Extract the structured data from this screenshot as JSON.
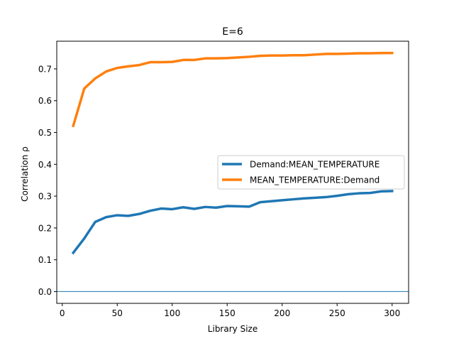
{
  "chart_data": {
    "type": "line",
    "title": "E=6",
    "xlabel": "Library Size",
    "ylabel": "Correlation ρ",
    "xlim": [
      -5,
      315
    ],
    "ylim": [
      -0.037,
      0.787
    ],
    "xticks": [
      0,
      50,
      100,
      150,
      200,
      250,
      300
    ],
    "xtick_labels": [
      "0",
      "50",
      "100",
      "150",
      "200",
      "250",
      "300"
    ],
    "yticks": [
      0.0,
      0.1,
      0.2,
      0.3,
      0.4,
      0.5,
      0.6,
      0.7
    ],
    "ytick_labels": [
      "0.0",
      "0.1",
      "0.2",
      "0.3",
      "0.4",
      "0.5",
      "0.6",
      "0.7"
    ],
    "grid": false,
    "legend_position": "center-right",
    "reference_line": {
      "y": 0.0,
      "color": "#1f77b4"
    },
    "x": [
      10,
      20,
      30,
      40,
      50,
      60,
      70,
      80,
      90,
      100,
      110,
      120,
      130,
      140,
      150,
      160,
      170,
      180,
      190,
      200,
      210,
      220,
      230,
      240,
      250,
      260,
      270,
      280,
      290,
      300
    ],
    "series": [
      {
        "name": "Demand:MEAN_TEMPERATURE",
        "color": "#1f77b4",
        "values": [
          0.122,
          0.167,
          0.219,
          0.234,
          0.24,
          0.238,
          0.244,
          0.254,
          0.261,
          0.259,
          0.265,
          0.26,
          0.266,
          0.264,
          0.269,
          0.268,
          0.267,
          0.281,
          0.284,
          0.287,
          0.29,
          0.293,
          0.295,
          0.297,
          0.301,
          0.306,
          0.309,
          0.31,
          0.315,
          0.316
        ]
      },
      {
        "name": "MEAN_TEMPERATURE:Demand",
        "color": "#ff7f0e",
        "values": [
          0.521,
          0.638,
          0.67,
          0.692,
          0.703,
          0.708,
          0.712,
          0.721,
          0.721,
          0.722,
          0.728,
          0.728,
          0.733,
          0.733,
          0.734,
          0.736,
          0.738,
          0.741,
          0.742,
          0.742,
          0.743,
          0.743,
          0.745,
          0.747,
          0.747,
          0.748,
          0.749,
          0.749,
          0.75,
          0.75
        ]
      }
    ]
  }
}
